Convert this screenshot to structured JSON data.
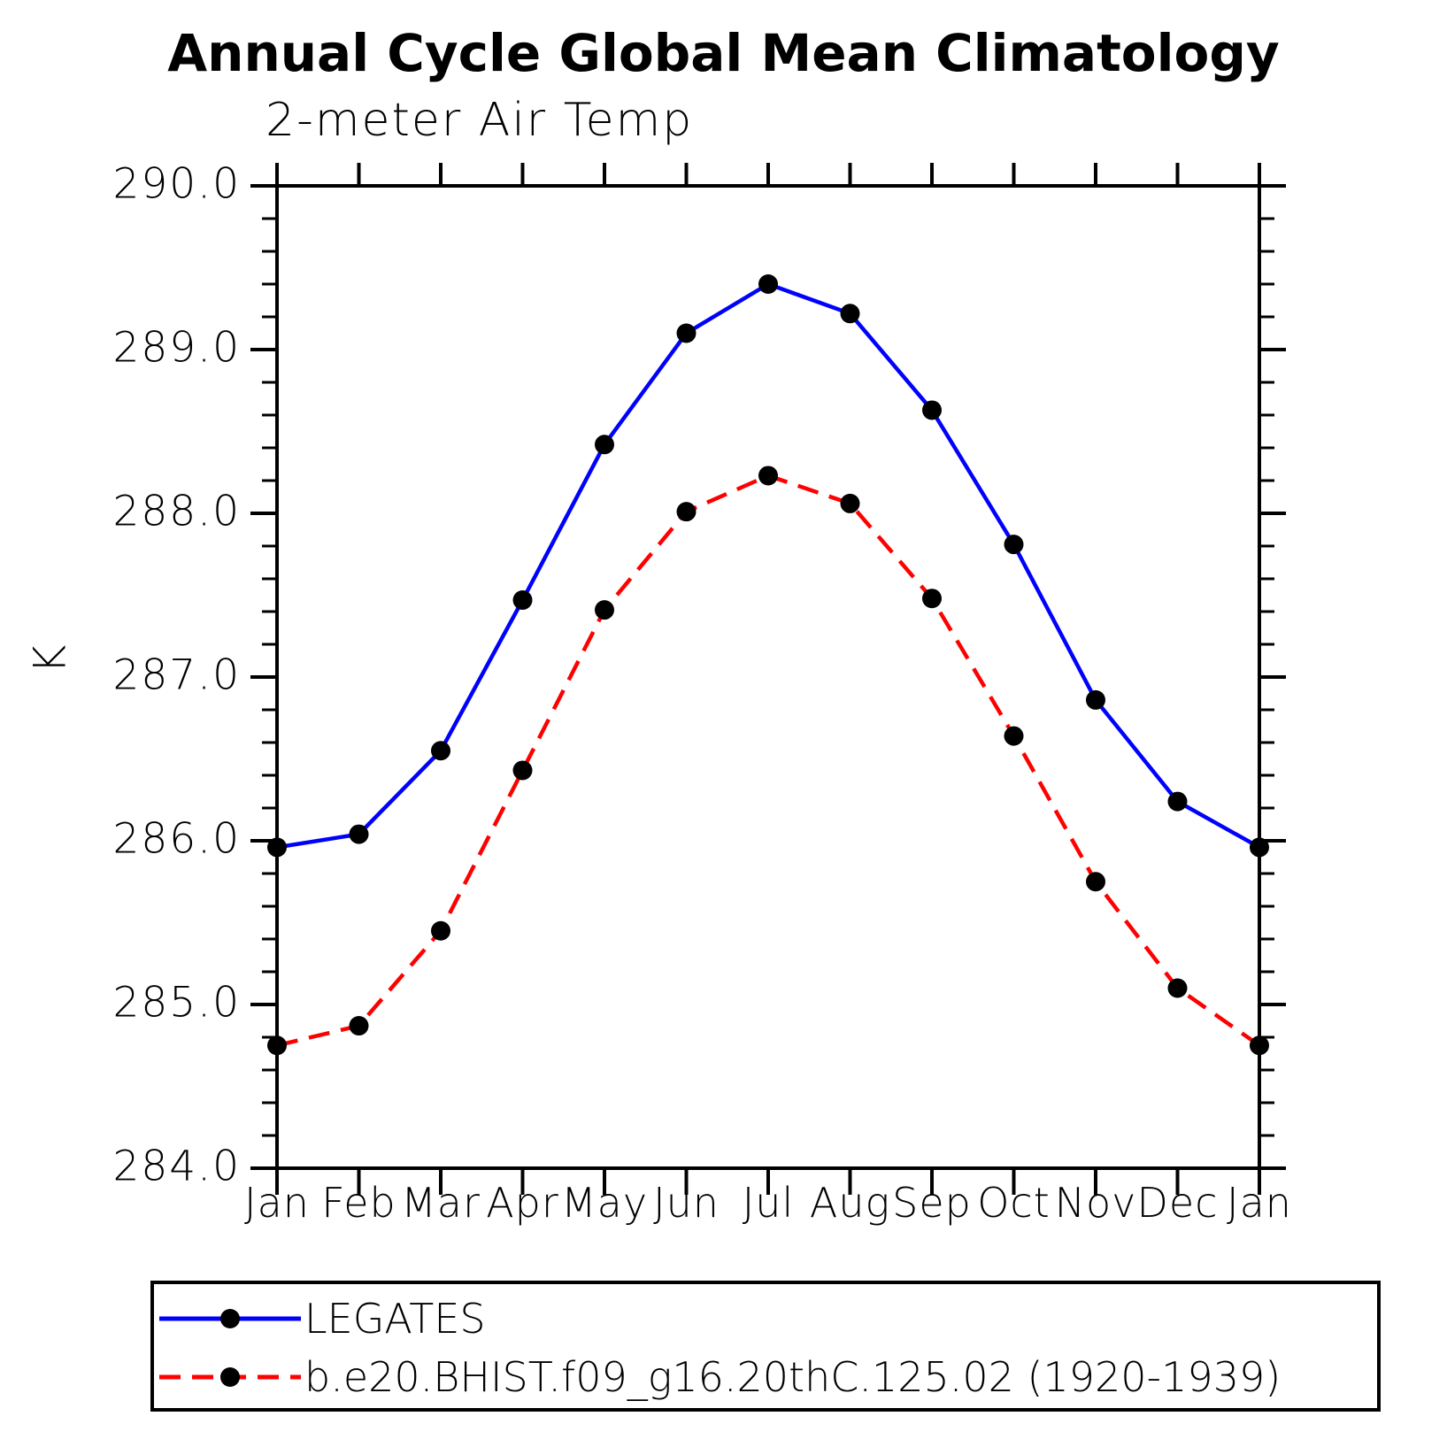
{
  "chart_data": {
    "type": "line",
    "title": "Annual Cycle Global Mean Climatology",
    "subtitle": "2-meter Air Temp",
    "ylabel": "K",
    "ylim": [
      284.0,
      290.0
    ],
    "y_major_step": 1.0,
    "y_minor_step": 0.2,
    "y_tick_labels": [
      "290.0",
      "289.0",
      "288.0",
      "287.0",
      "286.0",
      "285.0",
      "284.0"
    ],
    "categories": [
      "Jan",
      "Feb",
      "Mar",
      "Apr",
      "May",
      "Jun",
      "Jul",
      "Aug",
      "Sep",
      "Oct",
      "Nov",
      "Dec",
      "Jan"
    ],
    "grid": false,
    "legend_position": "bottom",
    "series": [
      {
        "name": "LEGATES",
        "color": "#0000ff",
        "line_style": "solid",
        "marker": "filled-circle",
        "marker_color": "#000000",
        "values": [
          285.96,
          286.04,
          286.55,
          287.47,
          288.42,
          289.1,
          289.4,
          289.22,
          288.63,
          287.81,
          286.86,
          286.24,
          285.96
        ]
      },
      {
        "name": "b.e20.BHIST.f09_g16.20thC.125.02 (1920-1939)",
        "color": "#ff0000",
        "line_style": "dashed",
        "marker": "filled-circle",
        "marker_color": "#000000",
        "values": [
          284.75,
          284.87,
          285.45,
          286.43,
          287.41,
          288.01,
          288.23,
          288.06,
          287.48,
          286.64,
          285.75,
          285.1,
          284.75
        ]
      }
    ],
    "axis_color": "#000000",
    "background_color": "#ffffff"
  }
}
